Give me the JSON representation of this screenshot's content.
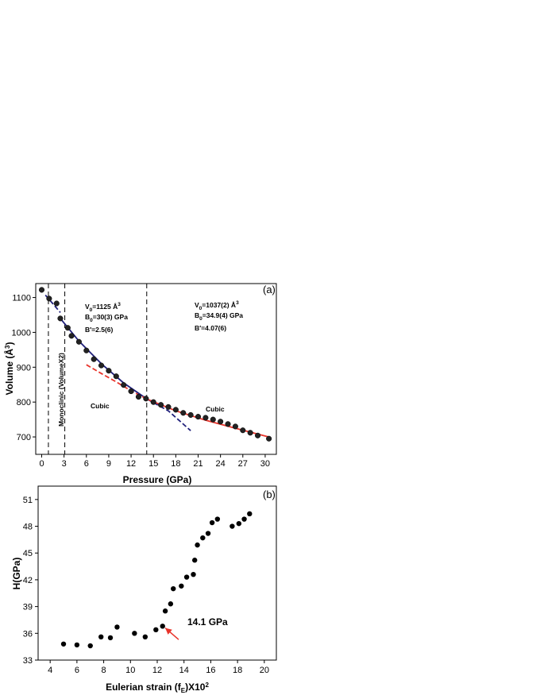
{
  "chart_data": [
    {
      "panel_label": "(a)",
      "type": "scatter",
      "xlabel": "Pressure (GPa)",
      "ylabel": "Volume (Å³)",
      "ylabel_main": "Volume (Å",
      "ylabel_sup": "3",
      "ylabel_end": ")",
      "xlim": [
        -0.8,
        31.5
      ],
      "ylim": [
        650,
        1140
      ],
      "xticks": [
        0,
        3,
        6,
        9,
        12,
        15,
        18,
        21,
        24,
        27,
        30
      ],
      "yticks": [
        700,
        800,
        900,
        1000,
        1100
      ],
      "points": [
        [
          0.0,
          1122
        ],
        [
          1.0,
          1097
        ],
        [
          2.0,
          1083
        ],
        [
          2.5,
          1040
        ],
        [
          3.5,
          1013
        ],
        [
          4.0,
          990
        ],
        [
          5.0,
          973
        ],
        [
          6.0,
          948
        ],
        [
          7.0,
          923
        ],
        [
          8.0,
          905
        ],
        [
          9.0,
          890
        ],
        [
          10.0,
          874
        ],
        [
          11.0,
          849
        ],
        [
          12.0,
          831
        ],
        [
          13.0,
          815
        ],
        [
          14.0,
          810
        ],
        [
          15.0,
          800
        ],
        [
          16.0,
          792
        ],
        [
          17.0,
          786
        ],
        [
          18.0,
          778
        ],
        [
          19.0,
          769
        ],
        [
          20.0,
          763
        ],
        [
          21.0,
          758
        ],
        [
          22.0,
          755
        ],
        [
          23.0,
          750
        ],
        [
          24.0,
          744
        ],
        [
          25.0,
          737
        ],
        [
          26.0,
          730
        ],
        [
          27.0,
          719
        ],
        [
          28.0,
          712
        ],
        [
          29.0,
          704
        ],
        [
          30.5,
          695
        ]
      ],
      "fit_curves": [
        {
          "color": "#1f1f7a",
          "style": "dashed",
          "points": [
            [
              0.5,
              1107
            ],
            [
              1.5,
              1082
            ],
            [
              2.5,
              1057
            ]
          ]
        },
        {
          "color": "#1f1f7a",
          "style": "solid",
          "points": [
            [
              2.5,
              1040
            ],
            [
              5,
              975
            ],
            [
              8,
              910
            ],
            [
              11,
              855
            ],
            [
              14.2,
              808
            ]
          ]
        },
        {
          "color": "#1f1f7a",
          "style": "dashed",
          "points": [
            [
              14.2,
              808
            ],
            [
              17,
              775
            ],
            [
              20,
              718
            ]
          ]
        },
        {
          "color": "#e8332a",
          "style": "dashed",
          "points": [
            [
              6,
              907
            ],
            [
              8,
              882
            ],
            [
              10,
              858
            ],
            [
              12,
              832
            ],
            [
              14.2,
              808
            ]
          ]
        },
        {
          "color": "#e8332a",
          "style": "solid",
          "points": [
            [
              14.2,
              808
            ],
            [
              18,
              775
            ],
            [
              22,
              748
            ],
            [
              26,
              725
            ],
            [
              30.5,
              700
            ]
          ]
        }
      ],
      "vlines": [
        0.9,
        3.1,
        14.1
      ],
      "annotations": {
        "left_fit": {
          "v": "V",
          "v_sub": "0",
          "v_val": "=1125 Å",
          "v_sup": "3",
          "b": "B",
          "b_sub": "0",
          "b_val": "=30(3) GPa",
          "bp": "B′=2.5(6)"
        },
        "right_fit": {
          "v": "V",
          "v_sub": "0",
          "v_val": "=1037(2) Å",
          "v_sup": "3",
          "b": "B",
          "b_sub": "0",
          "b_val": "=34.9(4) GPa",
          "bp": "B′=4.07(6)"
        },
        "phase_left": "Monoclinic (VolumeX2)",
        "cubic_1": "Cubic",
        "cubic_2": "Cubic"
      }
    },
    {
      "panel_label": "(b)",
      "type": "scatter",
      "xlabel": "Eulerian strain (fE)X102",
      "xlabel_a": "Eulerian strain (f",
      "xlabel_sub": "E",
      "xlabel_b": ")X10",
      "xlabel_sup": "2",
      "ylabel": "H(GPa)",
      "xlim": [
        3.1,
        20.9
      ],
      "ylim": [
        33,
        52.5
      ],
      "xticks": [
        4,
        6,
        8,
        10,
        12,
        14,
        16,
        18,
        20
      ],
      "yticks": [
        33,
        36,
        39,
        42,
        45,
        48,
        51
      ],
      "points": [
        [
          5.0,
          34.8
        ],
        [
          6.0,
          34.7
        ],
        [
          7.0,
          34.6
        ],
        [
          7.8,
          35.6
        ],
        [
          8.5,
          35.5
        ],
        [
          9.0,
          36.7
        ],
        [
          10.3,
          36.0
        ],
        [
          11.1,
          35.6
        ],
        [
          11.9,
          36.4
        ],
        [
          12.4,
          36.8
        ],
        [
          12.6,
          38.5
        ],
        [
          13.0,
          39.3
        ],
        [
          13.2,
          41.0
        ],
        [
          13.8,
          41.3
        ],
        [
          14.2,
          42.3
        ],
        [
          14.7,
          42.6
        ],
        [
          14.8,
          44.2
        ],
        [
          15.0,
          45.9
        ],
        [
          15.4,
          46.7
        ],
        [
          15.8,
          47.2
        ],
        [
          16.1,
          48.4
        ],
        [
          16.5,
          48.8
        ],
        [
          17.6,
          48.0
        ],
        [
          18.1,
          48.3
        ],
        [
          18.5,
          48.8
        ],
        [
          18.9,
          49.4
        ]
      ],
      "arrow": {
        "from": [
          13.6,
          35.3
        ],
        "to": [
          12.6,
          36.6
        ],
        "color": "#e8332a"
      },
      "arrow_label": "14.1 GPa"
    }
  ]
}
